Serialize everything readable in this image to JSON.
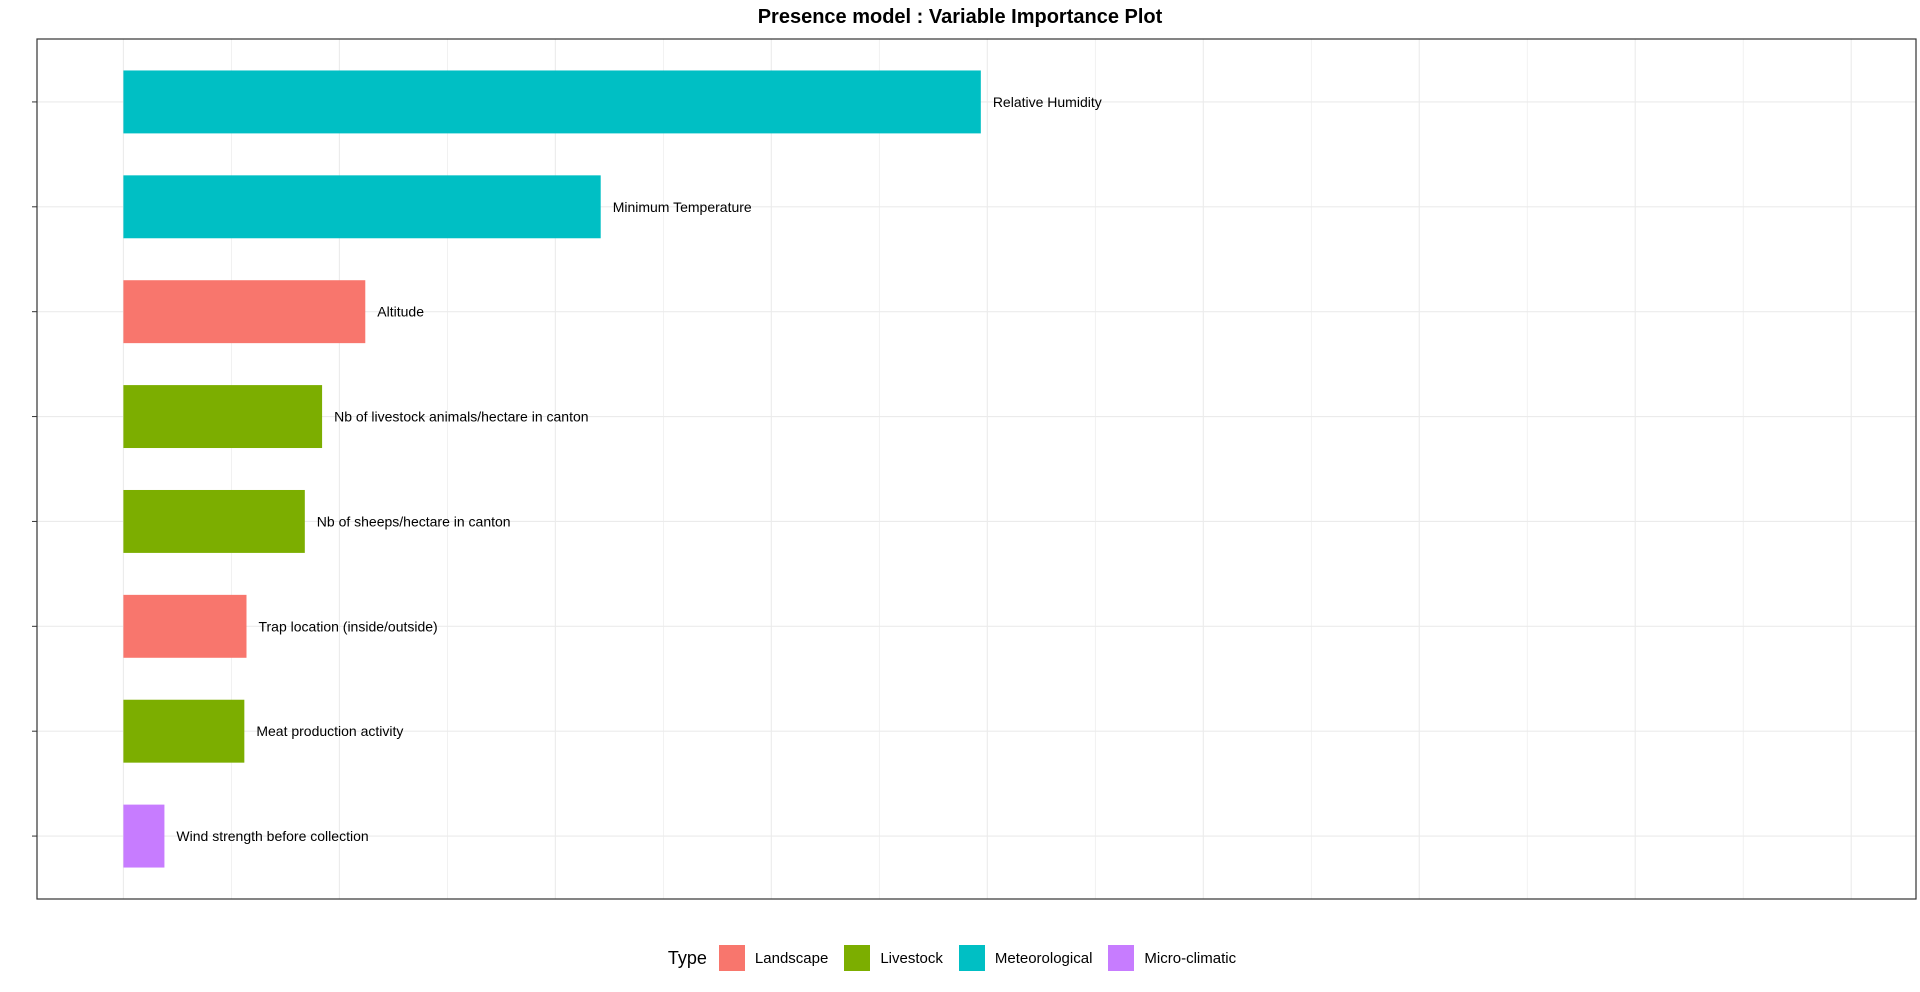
{
  "chart_data": {
    "type": "bar",
    "orientation": "horizontal",
    "title": "Presence model : Variable Importance Plot",
    "xlabel": "",
    "ylabel": "",
    "xlim": [
      -0.4,
      8.3
    ],
    "grid": true,
    "legend_position": "bottom",
    "legend_title": "Type",
    "legend": [
      {
        "name": "Landscape",
        "color": "#F8766D"
      },
      {
        "name": "Livestock",
        "color": "#7CAE00"
      },
      {
        "name": "Meteorological",
        "color": "#00BFC4"
      },
      {
        "name": "Micro-climatic",
        "color": "#C77CFF"
      }
    ],
    "bars": [
      {
        "label": "Relative Humidity",
        "value": 3.97,
        "type": "Meteorological"
      },
      {
        "label": "Minimum Temperature",
        "value": 2.21,
        "type": "Meteorological"
      },
      {
        "label": "Altitude",
        "value": 1.12,
        "type": "Landscape"
      },
      {
        "label": "Nb of livestock animals/hectare in canton",
        "value": 0.92,
        "type": "Livestock"
      },
      {
        "label": "Nb of sheeps/hectare in canton",
        "value": 0.84,
        "type": "Livestock"
      },
      {
        "label": "Trap location (inside/outside)",
        "value": 0.57,
        "type": "Landscape"
      },
      {
        "label": "Meat production activity",
        "value": 0.56,
        "type": "Livestock"
      },
      {
        "label": "Wind strength before collection",
        "value": 0.19,
        "type": "Micro-climatic"
      }
    ]
  }
}
